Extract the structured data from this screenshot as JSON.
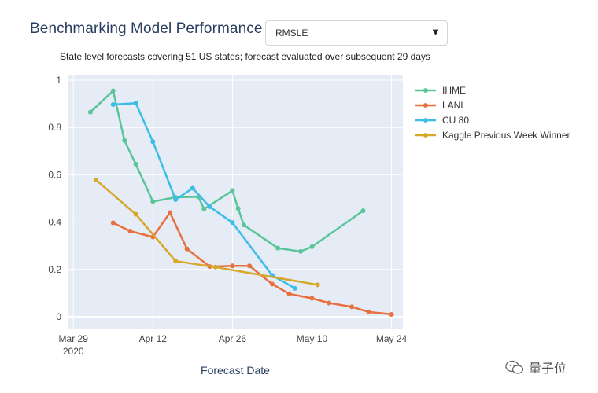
{
  "header": {
    "title": "Benchmarking Model Performance",
    "metric_selected": "RMSLE",
    "subtitle": "State level forecasts covering 51 US states; forecast evaluated over subsequent 29 days"
  },
  "icons": {
    "dropdown": "caret-down-icon",
    "watermark": "wechat-logo-icon"
  },
  "watermark": {
    "text": "量子位"
  },
  "chart_data": {
    "type": "line",
    "title": "",
    "xlabel": "Forecast Date",
    "ylabel": "",
    "x_ticks": [
      {
        "date": "2020-03-29",
        "label": "Mar 29",
        "sublabel": "2020"
      },
      {
        "date": "2020-04-12",
        "label": "Apr 12"
      },
      {
        "date": "2020-04-26",
        "label": "Apr 26"
      },
      {
        "date": "2020-05-10",
        "label": "May 10"
      },
      {
        "date": "2020-05-24",
        "label": "May 24"
      }
    ],
    "xlim": [
      "2020-03-28",
      "2020-05-26"
    ],
    "ylim": [
      -0.05,
      1.02
    ],
    "y_ticks": [
      0,
      0.2,
      0.4,
      0.6,
      0.8,
      1
    ],
    "y_tick_labels": [
      "0",
      "0.2",
      "0.4",
      "0.6",
      "0.8",
      "1"
    ],
    "grid": true,
    "plot_background": "#e5ecf6",
    "legend_position": "right",
    "series": [
      {
        "name": "IHME",
        "color": "#5bc59a",
        "x": [
          "2020-04-01",
          "2020-04-05",
          "2020-04-07",
          "2020-04-09",
          "2020-04-12",
          "2020-04-16",
          "2020-04-20",
          "2020-04-21",
          "2020-04-26",
          "2020-04-27",
          "2020-04-28",
          "2020-05-04",
          "2020-05-08",
          "2020-05-10",
          "2020-05-19"
        ],
        "y": [
          0.865,
          0.955,
          0.745,
          0.645,
          0.487,
          0.505,
          0.507,
          0.455,
          0.533,
          0.458,
          0.388,
          0.29,
          0.276,
          0.296,
          0.448
        ]
      },
      {
        "name": "LANL",
        "color": "#e8703e",
        "x": [
          "2020-04-05",
          "2020-04-08",
          "2020-04-12",
          "2020-04-15",
          "2020-04-18",
          "2020-04-22",
          "2020-04-26",
          "2020-04-29",
          "2020-05-03",
          "2020-05-06",
          "2020-05-10",
          "2020-05-13",
          "2020-05-17",
          "2020-05-20",
          "2020-05-24"
        ],
        "y": [
          0.397,
          0.362,
          0.337,
          0.44,
          0.287,
          0.212,
          0.215,
          0.215,
          0.138,
          0.097,
          0.078,
          0.058,
          0.042,
          0.02,
          0.01
        ]
      },
      {
        "name": "CU 80",
        "color": "#3bbde8",
        "x": [
          "2020-04-05",
          "2020-04-09",
          "2020-04-12",
          "2020-04-16",
          "2020-04-19",
          "2020-04-22",
          "2020-04-26",
          "2020-05-03",
          "2020-05-07"
        ],
        "y": [
          0.897,
          0.903,
          0.74,
          0.495,
          0.543,
          0.465,
          0.398,
          0.175,
          0.12
        ]
      },
      {
        "name": "Kaggle Previous Week Winner",
        "color": "#d6a82a",
        "x": [
          "2020-04-02",
          "2020-04-09",
          "2020-04-16",
          "2020-04-23",
          "2020-05-11"
        ],
        "y": [
          0.578,
          0.433,
          0.235,
          0.21,
          0.135
        ]
      }
    ]
  }
}
